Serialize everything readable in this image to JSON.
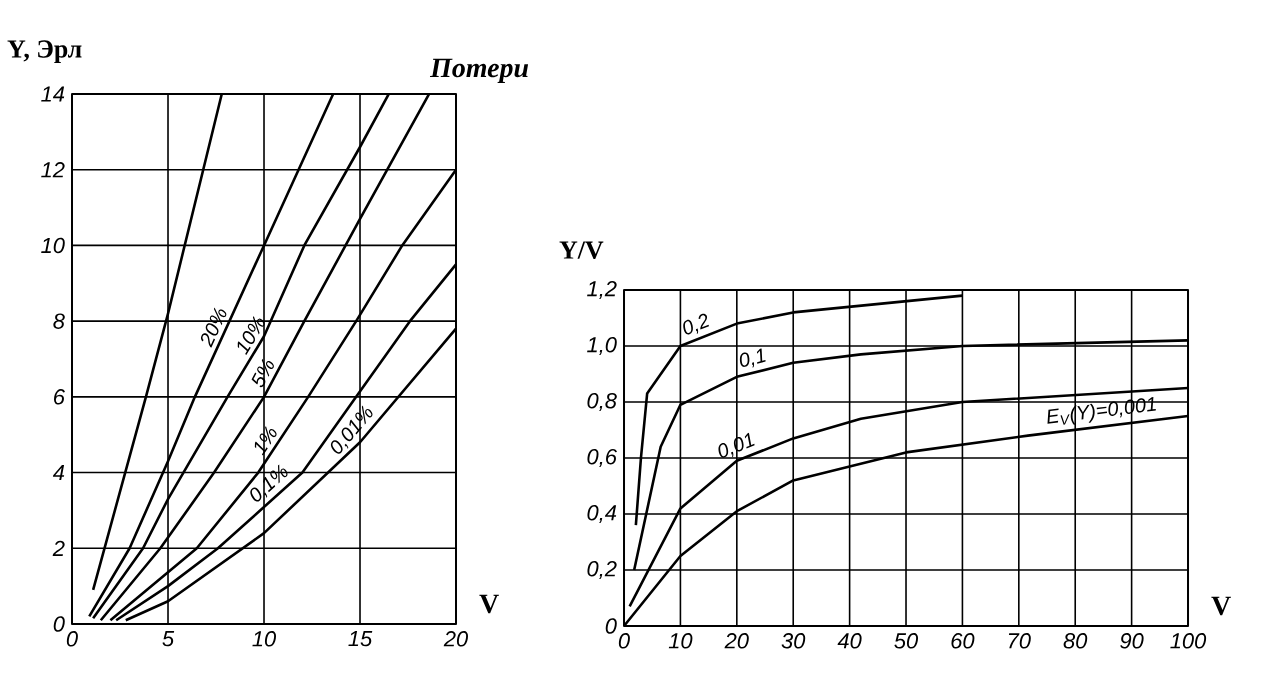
{
  "chart_data": [
    {
      "type": "line",
      "ylabel": "Y, Эрл",
      "xlabel": "V",
      "legend_title": "Потери",
      "xlim": [
        0,
        20
      ],
      "ylim": [
        0,
        14
      ],
      "xticks": [
        0,
        5,
        10,
        15,
        20
      ],
      "yticks": [
        0,
        2,
        4,
        6,
        8,
        10,
        12,
        14
      ],
      "grid": true,
      "series": [
        {
          "color": "#000000",
          "x": [
            1.1,
            3.85,
            5,
            7.8
          ],
          "values": [
            0.9,
            6,
            8.2,
            14
          ]
        },
        {
          "name": "20%",
          "color": "#000000",
          "x": [
            0.9,
            3,
            5,
            6.4,
            10,
            13.6
          ],
          "values": [
            0.2,
            2,
            4.3,
            6,
            10,
            14
          ]
        },
        {
          "name": "10%",
          "color": "#000000",
          "x": [
            1.1,
            3.7,
            5,
            8.1,
            10,
            12.1,
            15,
            16.5
          ],
          "values": [
            0.15,
            2,
            3.3,
            6,
            7.6,
            10,
            12.6,
            14
          ]
        },
        {
          "name": "5%",
          "color": "#000000",
          "x": [
            1.5,
            4.6,
            7.4,
            10,
            12.1,
            15,
            18.6
          ],
          "values": [
            0.1,
            2,
            4,
            6,
            8,
            10.7,
            14
          ]
        },
        {
          "name": "1%",
          "color": "#000000",
          "x": [
            2,
            6.5,
            9.7,
            12.3,
            14.8,
            17.2,
            20
          ],
          "values": [
            0.1,
            2,
            4,
            6,
            8,
            10,
            12
          ]
        },
        {
          "name": "0,1%",
          "color": "#000000",
          "x": [
            2.3,
            5,
            7.6,
            12,
            14.8,
            17.6,
            20
          ],
          "values": [
            0.1,
            1,
            2,
            4,
            6,
            8,
            9.5
          ]
        },
        {
          "name": "0,01%",
          "color": "#000000",
          "x": [
            2.8,
            5,
            10,
            15,
            20
          ],
          "values": [
            0.1,
            0.6,
            2.4,
            4.8,
            7.8
          ]
        }
      ]
    },
    {
      "type": "line",
      "ylabel": "Y/V",
      "xlabel": "V",
      "xlim": [
        0,
        100
      ],
      "ylim": [
        0,
        1.2
      ],
      "xticks": [
        0,
        10,
        20,
        30,
        40,
        50,
        60,
        70,
        80,
        90,
        100
      ],
      "yticks": [
        0,
        {
          "value": 0.2,
          "label": "0,2"
        },
        {
          "value": 0.4,
          "label": "0,4"
        },
        {
          "value": 0.6,
          "label": "0,6"
        },
        {
          "value": 0.8,
          "label": "0,8"
        },
        {
          "value": 1.0,
          "label": "1,0"
        },
        {
          "value": 1.2,
          "label": "1,2"
        }
      ],
      "grid": true,
      "series": [
        {
          "name": "0,2",
          "color": "#000000",
          "x": [
            2.1,
            3,
            4.1,
            10,
            20,
            30,
            60
          ],
          "values": [
            0.36,
            0.6,
            0.83,
            1.0,
            1.08,
            1.12,
            1.18
          ]
        },
        {
          "name": "0,1",
          "color": "#000000",
          "x": [
            1.8,
            6.5,
            10,
            20,
            30,
            42,
            60,
            100
          ],
          "values": [
            0.2,
            0.64,
            0.79,
            0.89,
            0.94,
            0.97,
            1.0,
            1.02
          ]
        },
        {
          "name": "0,01",
          "color": "#000000",
          "x": [
            1,
            10,
            20,
            30,
            42,
            60,
            100
          ],
          "values": [
            0.07,
            0.42,
            0.59,
            0.67,
            0.74,
            0.8,
            0.85
          ]
        },
        {
          "name": "*E*$_{V}$(Y)=0,001",
          "color": "#000000",
          "x": [
            0,
            10,
            20,
            30,
            50,
            71.6,
            100
          ],
          "values": [
            0,
            0.25,
            0.41,
            0.52,
            0.62,
            0.68,
            0.75
          ]
        }
      ]
    }
  ]
}
